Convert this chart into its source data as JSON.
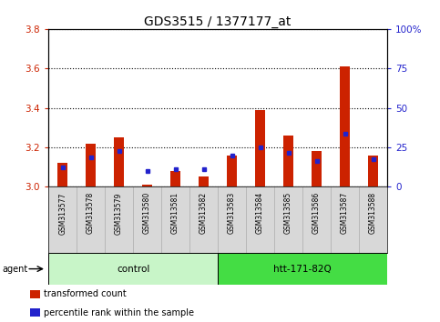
{
  "title": "GDS3515 / 1377177_at",
  "samples": [
    "GSM313577",
    "GSM313578",
    "GSM313579",
    "GSM313580",
    "GSM313581",
    "GSM313582",
    "GSM313583",
    "GSM313584",
    "GSM313585",
    "GSM313586",
    "GSM313587",
    "GSM313588"
  ],
  "red_values": [
    3.12,
    3.22,
    3.25,
    3.01,
    3.08,
    3.05,
    3.16,
    3.39,
    3.26,
    3.18,
    3.61,
    3.16
  ],
  "blue_values": [
    3.1,
    3.15,
    3.18,
    3.08,
    3.09,
    3.09,
    3.16,
    3.2,
    3.17,
    3.13,
    3.27,
    3.14
  ],
  "ylim_left": [
    3.0,
    3.8
  ],
  "ylim_right": [
    0,
    100
  ],
  "yticks_left": [
    3.0,
    3.2,
    3.4,
    3.6,
    3.8
  ],
  "yticks_right": [
    0,
    25,
    50,
    75,
    100
  ],
  "ytick_labels_right": [
    "0",
    "25",
    "50",
    "75",
    "100%"
  ],
  "groups": [
    {
      "label": "control",
      "indices": [
        0,
        1,
        2,
        3,
        4,
        5
      ],
      "color": "#c8f5c8"
    },
    {
      "label": "htt-171-82Q",
      "indices": [
        6,
        7,
        8,
        9,
        10,
        11
      ],
      "color": "#44dd44"
    }
  ],
  "agent_label": "agent",
  "legend_items": [
    {
      "label": "transformed count",
      "color": "#cc2200"
    },
    {
      "label": "percentile rank within the sample",
      "color": "#2222cc"
    }
  ],
  "bar_color": "#cc2200",
  "dot_color": "#2222cc",
  "base": 3.0,
  "bar_width": 0.35,
  "bg_color": "#ffffff",
  "plot_bg": "#ffffff",
  "grid_color": "#000000",
  "tick_color_left": "#cc2200",
  "tick_color_right": "#2222cc",
  "title_fontsize": 10,
  "tick_label_fontsize": 7.5,
  "sample_label_fontsize": 5.5
}
